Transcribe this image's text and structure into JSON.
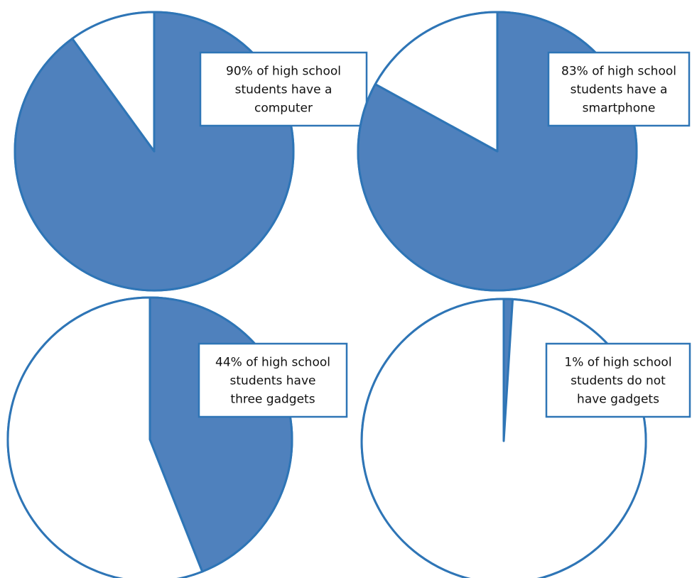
{
  "chart_data": [
    {
      "type": "pie",
      "slices": [
        {
          "label": "have a computer",
          "value": 90
        },
        {
          "label": "remainder",
          "value": 10
        }
      ],
      "annotation": [
        "90% of high school",
        "students have a",
        "computer"
      ]
    },
    {
      "type": "pie",
      "slices": [
        {
          "label": "have a smartphone",
          "value": 83
        },
        {
          "label": "remainder",
          "value": 17
        }
      ],
      "annotation": [
        "83% of high school",
        "students have a",
        "smartphone"
      ]
    },
    {
      "type": "pie",
      "slices": [
        {
          "label": "have three gadgets",
          "value": 44
        },
        {
          "label": "remainder",
          "value": 56
        }
      ],
      "annotation": [
        "44% of high school",
        "students have",
        "three gadgets"
      ]
    },
    {
      "type": "pie",
      "slices": [
        {
          "label": "do not have gadgets",
          "value": 1
        },
        {
          "label": "remainder",
          "value": 99
        }
      ],
      "annotation": [
        "1% of high school",
        "students do not",
        "have gadgets"
      ]
    }
  ],
  "colors": {
    "fill": "#4f81bd",
    "stroke": "#2e75b6",
    "background": "#ffffff",
    "callout_border": "#2e75b6"
  }
}
